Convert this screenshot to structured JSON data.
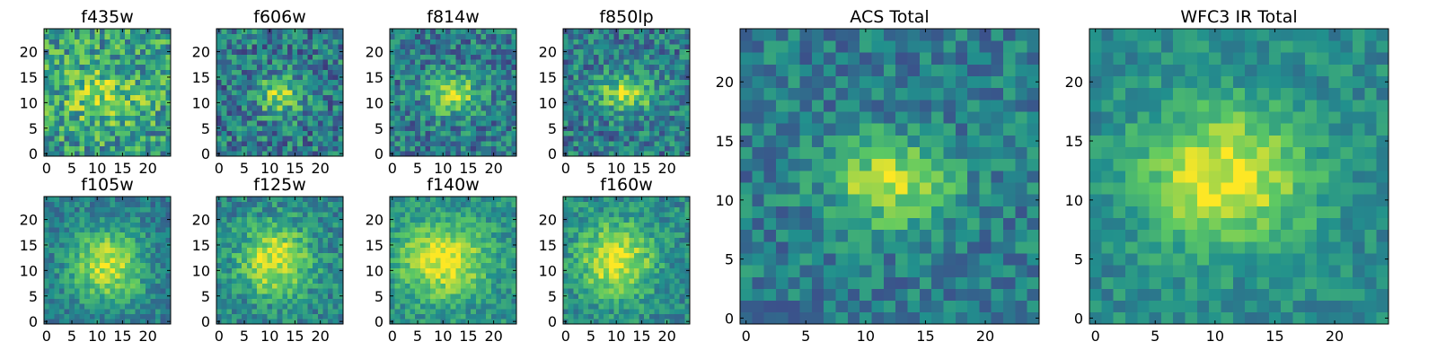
{
  "colormap": [
    "#440154",
    "#3b528b",
    "#21908d",
    "#5dc963",
    "#fde725"
  ],
  "chart_data": [
    {
      "type": "heatmap",
      "title": "f435w",
      "grid": "25x25",
      "xlim": [
        0,
        24
      ],
      "ylim": [
        0,
        24
      ],
      "xticks": [
        0,
        5,
        10,
        15,
        20
      ],
      "yticks": [
        0,
        5,
        10,
        15,
        20
      ],
      "seed": 11,
      "peak": {
        "x": 11,
        "y": 11.5,
        "amp": 0.25,
        "sx": 6,
        "sy": 4
      },
      "noise": 0.55,
      "base": 0.55
    },
    {
      "type": "heatmap",
      "title": "f606w",
      "grid": "25x25",
      "xlim": [
        0,
        24
      ],
      "ylim": [
        0,
        24
      ],
      "xticks": [
        0,
        5,
        10,
        15,
        20
      ],
      "yticks": [
        0,
        5,
        10,
        15,
        20
      ],
      "seed": 23,
      "peak": {
        "x": 12,
        "y": 11.5,
        "amp": 0.45,
        "sx": 3,
        "sy": 2.5
      },
      "noise": 0.5,
      "base": 0.42
    },
    {
      "type": "heatmap",
      "title": "f814w",
      "grid": "25x25",
      "xlim": [
        0,
        24
      ],
      "ylim": [
        0,
        24
      ],
      "xticks": [
        0,
        5,
        10,
        15,
        20
      ],
      "yticks": [
        0,
        5,
        10,
        15,
        20
      ],
      "seed": 37,
      "peak": {
        "x": 12,
        "y": 11.5,
        "amp": 0.5,
        "sx": 3.5,
        "sy": 2.5
      },
      "noise": 0.45,
      "base": 0.42
    },
    {
      "type": "heatmap",
      "title": "f850lp",
      "grid": "25x25",
      "xlim": [
        0,
        24
      ],
      "ylim": [
        0,
        24
      ],
      "xticks": [
        0,
        5,
        10,
        15,
        20
      ],
      "yticks": [
        0,
        5,
        10,
        15,
        20
      ],
      "seed": 41,
      "peak": {
        "x": 12,
        "y": 12,
        "amp": 0.45,
        "sx": 4,
        "sy": 2.5
      },
      "noise": 0.45,
      "base": 0.42
    },
    {
      "type": "heatmap",
      "title": "f105w",
      "grid": "25x25",
      "xlim": [
        0,
        24
      ],
      "ylim": [
        0,
        24
      ],
      "xticks": [
        0,
        5,
        10,
        15,
        20
      ],
      "yticks": [
        0,
        5,
        10,
        15,
        20
      ],
      "seed": 53,
      "peak": {
        "x": 12,
        "y": 11,
        "amp": 0.5,
        "sx": 5,
        "sy": 5
      },
      "noise": 0.3,
      "base": 0.42
    },
    {
      "type": "heatmap",
      "title": "f125w",
      "grid": "25x25",
      "xlim": [
        0,
        24
      ],
      "ylim": [
        0,
        24
      ],
      "xticks": [
        0,
        5,
        10,
        15,
        20
      ],
      "yticks": [
        0,
        5,
        10,
        15,
        20
      ],
      "seed": 61,
      "peak": {
        "x": 11,
        "y": 12,
        "amp": 0.5,
        "sx": 5,
        "sy": 5
      },
      "noise": 0.35,
      "base": 0.45
    },
    {
      "type": "heatmap",
      "title": "f140w",
      "grid": "25x25",
      "xlim": [
        0,
        24
      ],
      "ylim": [
        0,
        24
      ],
      "xticks": [
        0,
        5,
        10,
        15,
        20
      ],
      "yticks": [
        0,
        5,
        10,
        15,
        20
      ],
      "seed": 71,
      "peak": {
        "x": 10,
        "y": 12,
        "amp": 0.5,
        "sx": 6,
        "sy": 5
      },
      "noise": 0.3,
      "base": 0.5
    },
    {
      "type": "heatmap",
      "title": "f160w",
      "grid": "25x25",
      "xlim": [
        0,
        24
      ],
      "ylim": [
        0,
        24
      ],
      "xticks": [
        0,
        5,
        10,
        15,
        20
      ],
      "yticks": [
        0,
        5,
        10,
        15,
        20
      ],
      "seed": 83,
      "peak": {
        "x": 10,
        "y": 12,
        "amp": 0.5,
        "sx": 5,
        "sy": 5
      },
      "noise": 0.32,
      "base": 0.48
    },
    {
      "type": "heatmap",
      "title": "ACS Total",
      "grid": "25x25",
      "xlim": [
        0,
        24
      ],
      "ylim": [
        0,
        24
      ],
      "xticks": [
        0,
        5,
        10,
        15,
        20
      ],
      "yticks": [
        0,
        5,
        10,
        15,
        20
      ],
      "seed": 97,
      "peak": {
        "x": 12,
        "y": 11.5,
        "amp": 0.5,
        "sx": 3.5,
        "sy": 2.5
      },
      "noise": 0.35,
      "base": 0.42
    },
    {
      "type": "heatmap",
      "title": "WFC3 IR Total",
      "grid": "25x25",
      "xlim": [
        0,
        24
      ],
      "ylim": [
        0,
        24
      ],
      "xticks": [
        0,
        5,
        10,
        15,
        20
      ],
      "yticks": [
        0,
        5,
        10,
        15,
        20
      ],
      "seed": 101,
      "peak": {
        "x": 11,
        "y": 12,
        "amp": 0.5,
        "sx": 5,
        "sy": 4
      },
      "noise": 0.25,
      "base": 0.48
    }
  ]
}
